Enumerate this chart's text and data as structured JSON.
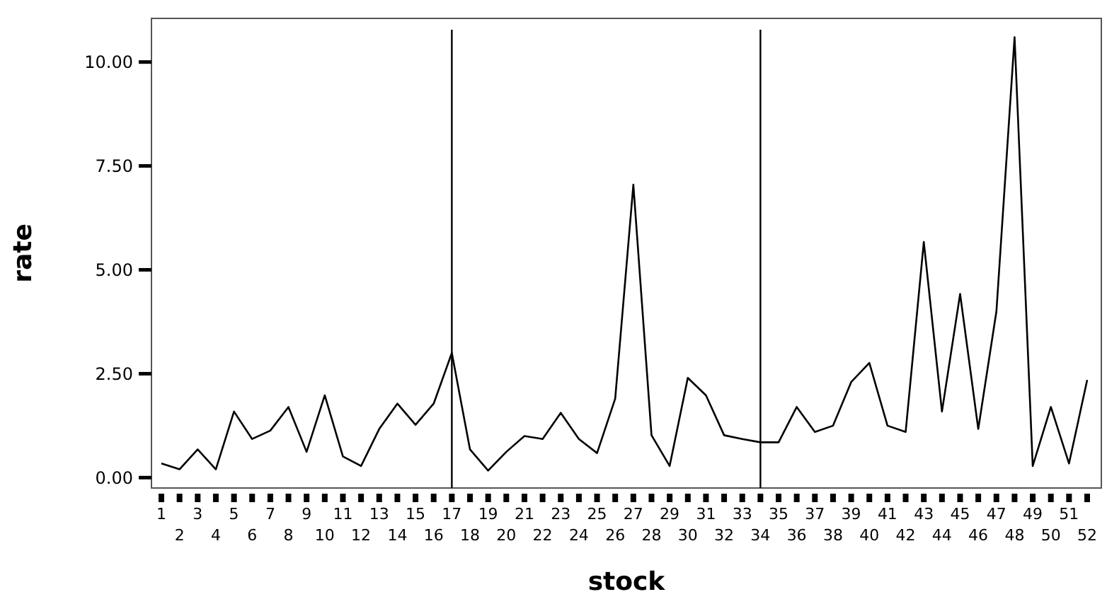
{
  "chart_data": {
    "type": "line",
    "xlabel": "stock",
    "ylabel": "rate",
    "categories": [
      "1",
      "2",
      "3",
      "4",
      "5",
      "6",
      "7",
      "8",
      "9",
      "10",
      "11",
      "12",
      "13",
      "14",
      "15",
      "16",
      "17",
      "18",
      "19",
      "20",
      "21",
      "22",
      "23",
      "24",
      "25",
      "26",
      "27",
      "28",
      "29",
      "30",
      "31",
      "32",
      "33",
      "34",
      "35",
      "36",
      "37",
      "38",
      "39",
      "40",
      "41",
      "42",
      "43",
      "44",
      "45",
      "46",
      "47",
      "48",
      "49",
      "50",
      "51",
      "52"
    ],
    "series": [
      {
        "color": "#000000",
        "values": [
          0.34,
          0.2,
          0.68,
          0.2,
          1.59,
          0.93,
          1.13,
          1.7,
          0.62,
          1.98,
          0.51,
          0.28,
          1.17,
          1.78,
          1.27,
          1.78,
          3.0,
          0.68,
          0.17,
          0.62,
          1.0,
          0.93,
          1.56,
          0.93,
          0.59,
          1.9,
          7.05,
          1.02,
          0.28,
          2.4,
          1.98,
          1.02,
          0.93,
          0.85,
          0.85,
          1.7,
          1.1,
          1.25,
          2.3,
          2.76,
          1.25,
          1.1,
          5.67,
          1.59,
          4.42,
          1.17,
          4.0,
          10.6,
          0.28,
          1.7,
          0.34,
          2.35
        ]
      }
    ],
    "ylim": [
      -0.25,
      11.05
    ],
    "yticks": [
      {
        "value": 0,
        "label": "0.00"
      },
      {
        "value": 2.5,
        "label": "2.50"
      },
      {
        "value": 5,
        "label": "5.00"
      },
      {
        "value": 7.5,
        "label": "7.50"
      },
      {
        "value": 10,
        "label": "10.00"
      }
    ],
    "ref_lines": [
      {
        "axis": "x",
        "value": "17",
        "color": "#000000"
      },
      {
        "axis": "x",
        "value": "34",
        "color": "#000000"
      }
    ],
    "grid": false,
    "marker": "none",
    "line_style": "solid"
  }
}
